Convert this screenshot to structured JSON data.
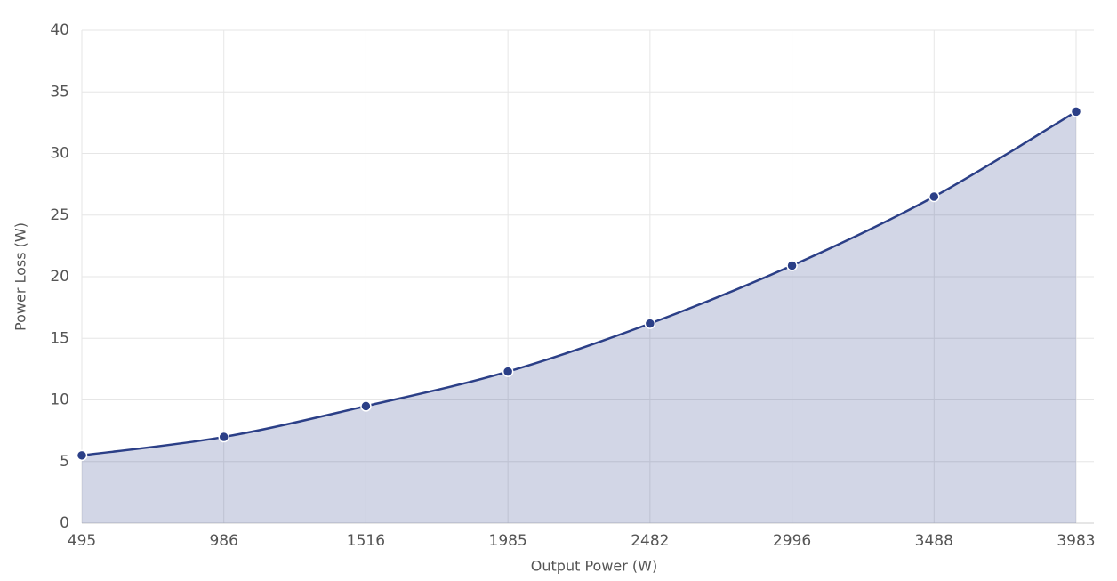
{
  "chart_data": {
    "type": "area",
    "x_label": "Output Power (W)",
    "y_label": "Power Loss (W)",
    "categories": [
      "495",
      "986",
      "1516",
      "1985",
      "2482",
      "2996",
      "3488",
      "3983"
    ],
    "values": [
      5.5,
      7.0,
      9.5,
      12.3,
      16.2,
      20.9,
      26.5,
      33.4
    ],
    "color": "#2b3f87",
    "ylim": [
      0,
      40
    ],
    "yticks": [
      0,
      5,
      10,
      15,
      20,
      25,
      30,
      35,
      40
    ],
    "grid": true
  }
}
